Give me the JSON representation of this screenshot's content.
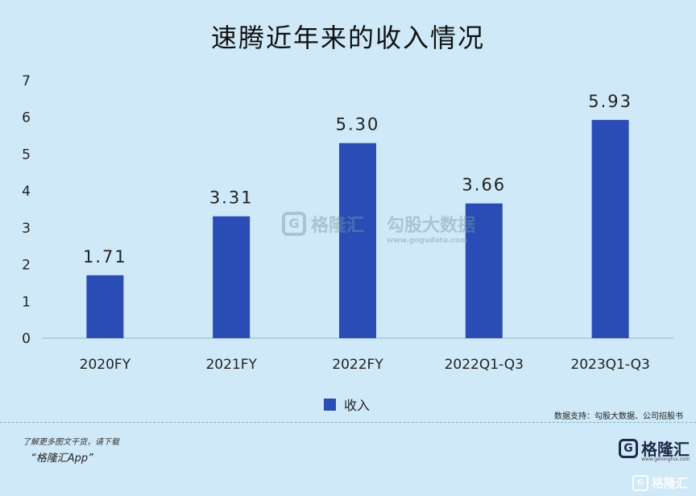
{
  "title": "速腾近年来的收入情况",
  "chart_data": {
    "type": "bar",
    "title": "速腾近年来的收入情况",
    "categories": [
      "2020FY",
      "2021FY",
      "2022FY",
      "2022Q1-Q3",
      "2023Q1-Q3"
    ],
    "series": [
      {
        "name": "收入",
        "values": [
          1.71,
          3.31,
          5.3,
          3.66,
          5.93
        ]
      }
    ],
    "data_labels": [
      "1.71",
      "3.31",
      "5.30",
      "3.66",
      "5.93"
    ],
    "ylim": [
      0,
      7
    ],
    "yticks": [
      "0",
      "1",
      "2",
      "3",
      "4",
      "5",
      "6",
      "7"
    ],
    "grid": false,
    "legend_position": "bottom",
    "bar_color": "#2a4db5"
  },
  "legend": {
    "label": "收入"
  },
  "source": "数据支持：勾股大数据、公司招股书",
  "watermark": {
    "logo_text": "格隆汇",
    "brand_text": "勾股大数据",
    "brand_url": "www.gogudata.com"
  },
  "footer": {
    "line1": "了解更多图文干货，请下载",
    "line2": "“格隆汇App”",
    "logo_text": "格隆汇",
    "logo_url": "www.gelonghui.com",
    "corner_mark": "格隆汇"
  },
  "icons": {
    "logo": "g-logo-icon"
  }
}
